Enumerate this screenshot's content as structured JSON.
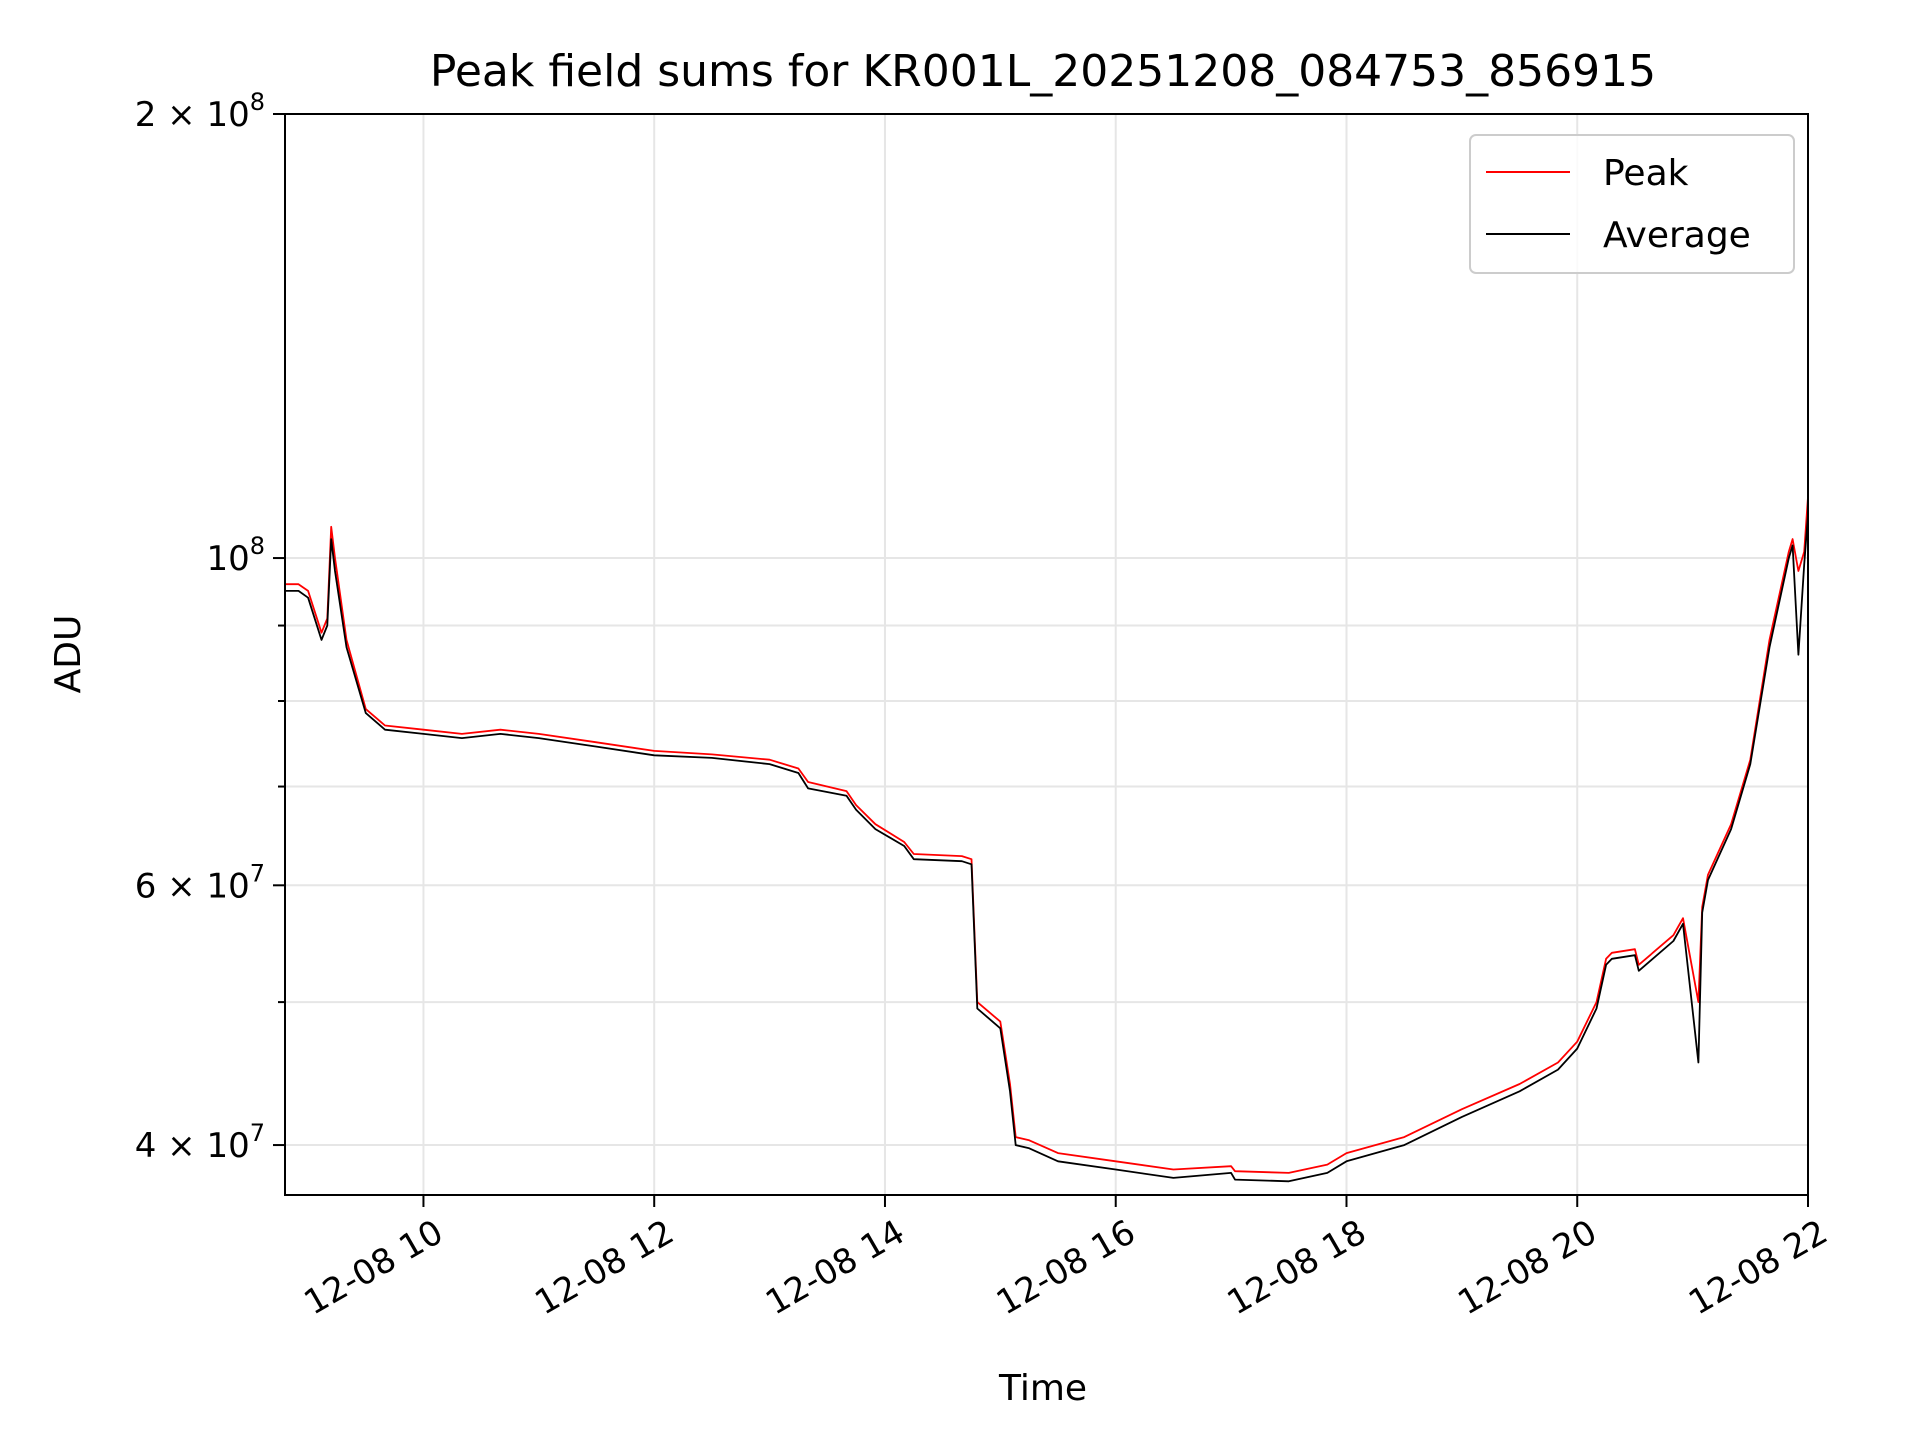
{
  "chart_data": {
    "type": "line",
    "title": "Peak field sums for KR001L_20251208_084753_856915",
    "xlabel": "Time",
    "ylabel": "ADU",
    "yscale": "log",
    "ylim": [
      37000000,
      200000000
    ],
    "xlim": [
      "12-08 08:48",
      "12-08 22:00"
    ],
    "x_ticks": [
      "12-08 10",
      "12-08 12",
      "12-08 14",
      "12-08 16",
      "12-08 18",
      "12-08 20",
      "12-08 22"
    ],
    "x_tick_times": [
      "12-08 10:00",
      "12-08 12:00",
      "12-08 14:00",
      "12-08 16:00",
      "12-08 18:00",
      "12-08 20:00",
      "12-08 22:00"
    ],
    "y_ticks_major": [
      {
        "value": 40000000,
        "base": "4 × 10",
        "exp": "7"
      },
      {
        "value": 60000000,
        "base": "6 × 10",
        "exp": "7"
      },
      {
        "value": 100000000,
        "base": "10",
        "exp": "8"
      },
      {
        "value": 200000000,
        "base": "2 × 10",
        "exp": "8"
      }
    ],
    "y_ticks_minor": [
      50000000,
      70000000,
      80000000,
      90000000
    ],
    "grid": true,
    "legend_position": "top-right",
    "colors": {
      "Peak": "#ff0000",
      "Average": "#000000"
    },
    "series": [
      {
        "name": "Peak",
        "times": [
          "08:48",
          "08:55",
          "09:00",
          "09:07",
          "09:10",
          "09:12",
          "09:14",
          "09:20",
          "09:30",
          "09:40",
          "10:00",
          "10:20",
          "10:40",
          "11:00",
          "11:30",
          "12:00",
          "12:30",
          "13:00",
          "13:15",
          "13:20",
          "13:40",
          "13:45",
          "13:55",
          "14:10",
          "14:15",
          "14:40",
          "14:45",
          "14:48",
          "15:00",
          "15:05",
          "15:08",
          "15:15",
          "15:30",
          "16:00",
          "16:30",
          "17:00",
          "17:02",
          "17:30",
          "17:50",
          "18:00",
          "18:30",
          "19:00",
          "19:30",
          "19:50",
          "20:00",
          "20:10",
          "20:15",
          "20:18",
          "20:30",
          "20:32",
          "20:50",
          "20:55",
          "21:03",
          "21:05",
          "21:08",
          "21:20",
          "21:30",
          "21:40",
          "21:50",
          "21:52",
          "21:55",
          "21:58",
          "22:00"
        ],
        "values": [
          96000000,
          96000000,
          95000000,
          89000000,
          91000000,
          105000000,
          100000000,
          88000000,
          79000000,
          77000000,
          76500000,
          76000000,
          76500000,
          76000000,
          75000000,
          74000000,
          73600000,
          73000000,
          72000000,
          70500000,
          69500000,
          68000000,
          66000000,
          64200000,
          63000000,
          62800000,
          62500000,
          50000000,
          48500000,
          44000000,
          40500000,
          40300000,
          39500000,
          39000000,
          38500000,
          38700000,
          38400000,
          38300000,
          38800000,
          39500000,
          40500000,
          42300000,
          44000000,
          45500000,
          47000000,
          50000000,
          53500000,
          54000000,
          54300000,
          53000000,
          55500000,
          57000000,
          50000000,
          58000000,
          61000000,
          66000000,
          73000000,
          88000000,
          101000000,
          103000000,
          98000000,
          101000000,
          110000000
        ]
      },
      {
        "name": "Average",
        "times": [
          "08:48",
          "08:55",
          "09:00",
          "09:07",
          "09:10",
          "09:12",
          "09:14",
          "09:20",
          "09:30",
          "09:40",
          "10:00",
          "10:20",
          "10:40",
          "11:00",
          "11:30",
          "12:00",
          "12:30",
          "13:00",
          "13:15",
          "13:20",
          "13:40",
          "13:45",
          "13:55",
          "14:10",
          "14:15",
          "14:40",
          "14:45",
          "14:48",
          "15:00",
          "15:05",
          "15:08",
          "15:15",
          "15:30",
          "16:00",
          "16:30",
          "17:00",
          "17:02",
          "17:30",
          "17:50",
          "18:00",
          "18:30",
          "19:00",
          "19:30",
          "19:50",
          "20:00",
          "20:10",
          "20:15",
          "20:18",
          "20:30",
          "20:32",
          "20:50",
          "20:55",
          "21:03",
          "21:05",
          "21:08",
          "21:20",
          "21:30",
          "21:40",
          "21:50",
          "21:52",
          "21:55",
          "21:58",
          "22:00"
        ],
        "values": [
          95000000,
          95000000,
          94000000,
          88000000,
          90000000,
          103000000,
          98000000,
          87000000,
          78500000,
          76500000,
          76000000,
          75500000,
          76000000,
          75500000,
          74500000,
          73500000,
          73200000,
          72500000,
          71500000,
          69800000,
          69000000,
          67500000,
          65500000,
          63800000,
          62500000,
          62300000,
          62000000,
          49500000,
          48000000,
          43500000,
          40000000,
          39800000,
          39000000,
          38500000,
          38000000,
          38300000,
          37900000,
          37800000,
          38300000,
          39000000,
          40000000,
          41800000,
          43500000,
          45000000,
          46500000,
          49500000,
          53000000,
          53500000,
          53800000,
          52500000,
          55000000,
          56500000,
          45500000,
          57500000,
          60500000,
          65500000,
          72500000,
          87000000,
          100000000,
          102000000,
          86000000,
          99000000,
          107000000
        ]
      }
    ]
  }
}
